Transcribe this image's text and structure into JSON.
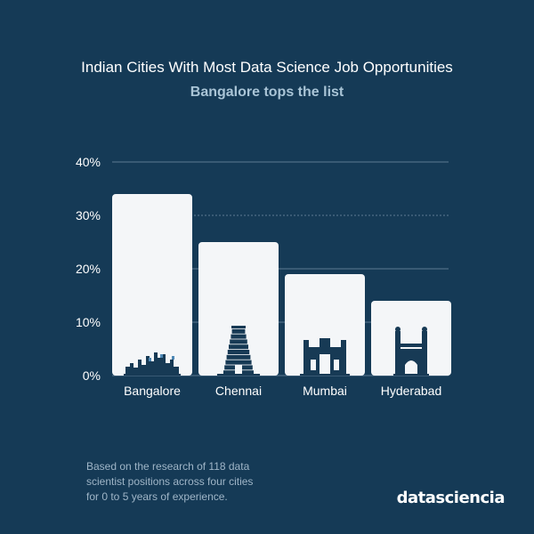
{
  "colors": {
    "background": "#153a56",
    "bar": "#f4f6f8",
    "gridline": "#5d7a92",
    "text": "#ffffff",
    "subtitle": "#a9c4d6",
    "footnote": "#9fb5c7",
    "icon": "#173a55"
  },
  "chart_data": {
    "type": "bar",
    "title": "Indian Cities With Most Data Science Job Opportunities",
    "subtitle": "Bangalore tops the list",
    "categories": [
      "Bangalore",
      "Chennai",
      "Mumbai",
      "Hyderabad"
    ],
    "values": [
      34,
      25,
      19,
      14
    ],
    "ylim": [
      0,
      40
    ],
    "yticks": [
      "0%",
      "10%",
      "20%",
      "30%",
      "40%"
    ],
    "ytick_values": [
      0,
      10,
      20,
      30,
      40
    ],
    "grid": true,
    "icons": [
      "bangalore-skyline-icon",
      "chennai-temple-icon",
      "mumbai-gateway-icon",
      "hyderabad-charminar-icon"
    ]
  },
  "footnote": {
    "lines": [
      "Based on the research of 118 data",
      "scientist positions across four cities",
      "for 0 to 5 years of experience."
    ]
  },
  "brand": "datasciencia"
}
